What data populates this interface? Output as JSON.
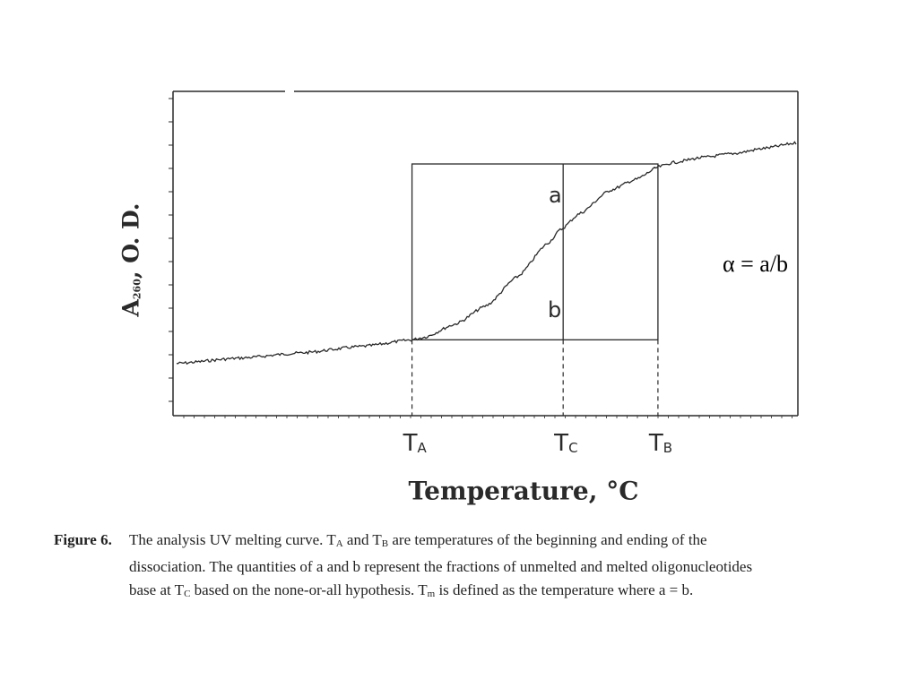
{
  "chart_data": {
    "type": "line",
    "title": "",
    "xlabel": "Temperature, °C",
    "ylabel": "A260, O. D.",
    "ylabel_main": "A",
    "ylabel_sub": "260",
    "ylabel_rest": ", O. D.",
    "grid": false,
    "xlim": [
      0,
      1
    ],
    "ylim": [
      0,
      1
    ],
    "series": [
      {
        "x": [
          0.0,
          0.1,
          0.2,
          0.3,
          0.38,
          0.4,
          0.45,
          0.5,
          0.55,
          0.6,
          0.62,
          0.65,
          0.7,
          0.74,
          0.78,
          0.8,
          0.85,
          0.9,
          0.95,
          1.0
        ],
        "values": [
          0.1,
          0.12,
          0.14,
          0.165,
          0.19,
          0.2,
          0.25,
          0.32,
          0.43,
          0.56,
          0.61,
          0.67,
          0.76,
          0.8,
          0.85,
          0.865,
          0.885,
          0.9,
          0.92,
          0.94
        ]
      }
    ],
    "markers": [
      {
        "label_main": "T",
        "label_sub": "A",
        "x": 0.38
      },
      {
        "label_main": "T",
        "label_sub": "C",
        "x": 0.624
      },
      {
        "label_main": "T",
        "label_sub": "B",
        "x": 0.777
      }
    ],
    "box": {
      "x_start": 0.38,
      "x_end": 0.777,
      "y_low": 0.19,
      "y_high": 0.86
    },
    "annotations": [
      "a",
      "b",
      "α = a/b"
    ]
  },
  "caption": {
    "label": "Figure 6.",
    "line1": {
      "a": "The analysis UV melting curve.  T",
      "a_sub": "A",
      "b": " and T",
      "b_sub": "B",
      "c": " are temperatures of the beginning and ending of the"
    },
    "line2": "dissociation.  The quantities of a and b represent the fractions of unmelted and melted oligonucleotides",
    "line3": {
      "a": "base at T",
      "a_sub": "C",
      "b": " based on the none-or-all hypothesis.  T",
      "b_sub": "m",
      "c": " is defined as the temperature where a = b."
    }
  },
  "colors": {
    "ink": "#2a2a2a",
    "background": "#ffffff"
  }
}
